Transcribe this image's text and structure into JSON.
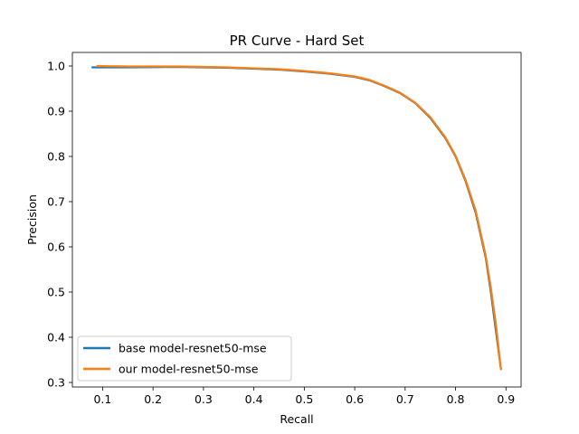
{
  "chart_data": {
    "type": "line",
    "title": "PR Curve - Hard Set",
    "xlabel": "Recall",
    "ylabel": "Precision",
    "xlim": [
      0.04,
      0.93
    ],
    "ylim": [
      0.29,
      1.03
    ],
    "xticks": [
      0.1,
      0.2,
      0.3,
      0.4,
      0.5,
      0.6,
      0.7,
      0.8,
      0.9
    ],
    "xtick_labels": [
      "0.1",
      "0.2",
      "0.3",
      "0.4",
      "0.5",
      "0.6",
      "0.7",
      "0.8",
      "0.9"
    ],
    "yticks": [
      0.3,
      0.4,
      0.5,
      0.6,
      0.7,
      0.8,
      0.9,
      1.0
    ],
    "ytick_labels": [
      "0.3",
      "0.4",
      "0.5",
      "0.6",
      "0.7",
      "0.8",
      "0.9",
      "1.0"
    ],
    "grid": false,
    "legend_position": "lower-left",
    "series": [
      {
        "name": "base model-resnet50-mse",
        "color": "#1f77b4",
        "x": [
          0.08,
          0.15,
          0.25,
          0.35,
          0.45,
          0.5,
          0.55,
          0.6,
          0.63,
          0.66,
          0.69,
          0.72,
          0.75,
          0.78,
          0.8,
          0.82,
          0.84,
          0.86,
          0.87,
          0.88,
          0.89
        ],
        "y": [
          0.997,
          0.997,
          0.998,
          0.996,
          0.992,
          0.988,
          0.983,
          0.976,
          0.968,
          0.955,
          0.94,
          0.918,
          0.885,
          0.84,
          0.8,
          0.745,
          0.675,
          0.575,
          0.5,
          0.415,
          0.33
        ]
      },
      {
        "name": "our model-resnet50-mse",
        "color": "#ff7f0e",
        "x": [
          0.09,
          0.15,
          0.25,
          0.35,
          0.45,
          0.5,
          0.55,
          0.6,
          0.63,
          0.66,
          0.69,
          0.72,
          0.75,
          0.78,
          0.8,
          0.82,
          0.84,
          0.86,
          0.87,
          0.88,
          0.89
        ],
        "y": [
          1.0,
          0.999,
          0.999,
          0.997,
          0.993,
          0.989,
          0.984,
          0.977,
          0.969,
          0.956,
          0.941,
          0.919,
          0.887,
          0.842,
          0.802,
          0.748,
          0.68,
          0.58,
          0.51,
          0.43,
          0.33
        ]
      }
    ]
  }
}
